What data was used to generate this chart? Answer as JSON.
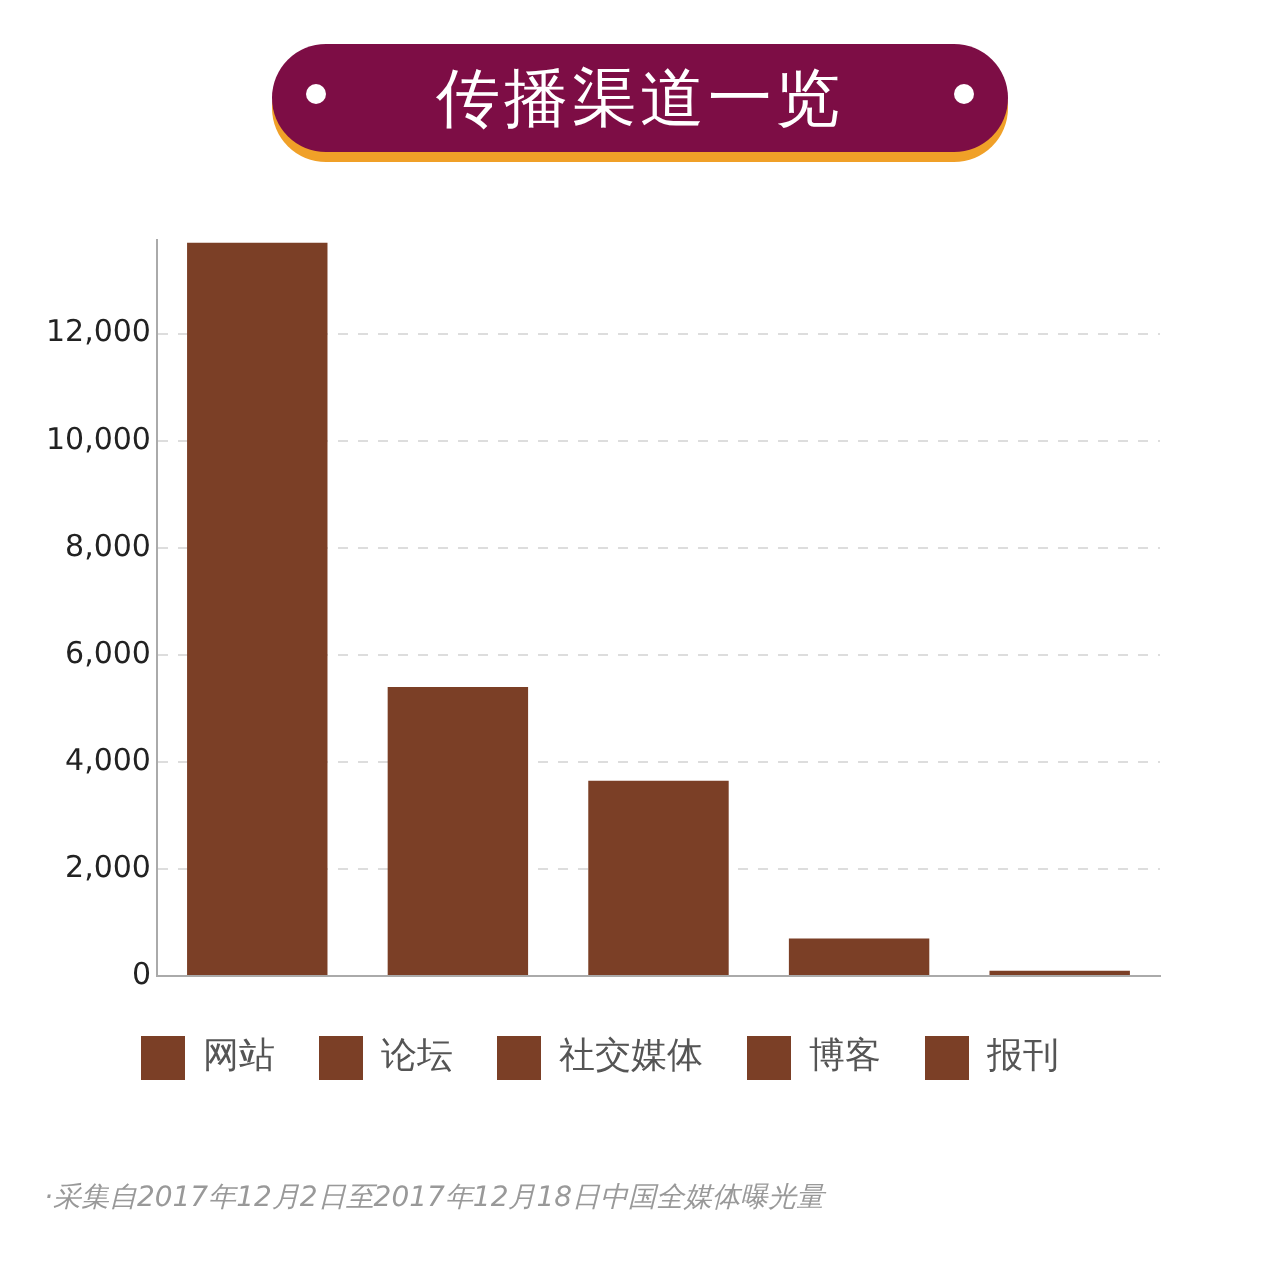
{
  "chart_data": {
    "type": "bar",
    "title": "传播渠道一览",
    "categories": [
      null,
      null,
      null,
      null,
      null
    ],
    "series": [
      {
        "name": "网站",
        "color": "#7b3f26",
        "values": [
          13700,
          null,
          null,
          null,
          null
        ]
      },
      {
        "name": "论坛",
        "color": "#7b3f26",
        "values": [
          null,
          5400,
          null,
          null,
          null
        ]
      },
      {
        "name": "社交媒体",
        "color": "#7b3f26",
        "values": [
          null,
          null,
          3650,
          null,
          null
        ]
      },
      {
        "name": "博客",
        "color": "#7b3f26",
        "values": [
          null,
          null,
          null,
          700,
          null
        ]
      },
      {
        "name": "报刊",
        "color": "#7b3f26",
        "values": [
          null,
          null,
          null,
          null,
          100
        ]
      }
    ],
    "ylim": [
      0,
      13750
    ],
    "yticks": [
      0,
      {
        "value": 2000,
        "label": "2,000"
      },
      {
        "value": 4000,
        "label": "4,000"
      },
      {
        "value": 6000,
        "label": "6,000"
      },
      {
        "value": 8000,
        "label": "8,000"
      },
      {
        "value": 10000,
        "label": "10,000"
      },
      {
        "value": 12000,
        "label": "12,000"
      }
    ],
    "grid": "y",
    "legend": "bottom",
    "tick_labels": "y",
    "annotations": [
      "·采集自2017年12月2日至2017年12月18日中国全媒体曝光量"
    ]
  }
}
